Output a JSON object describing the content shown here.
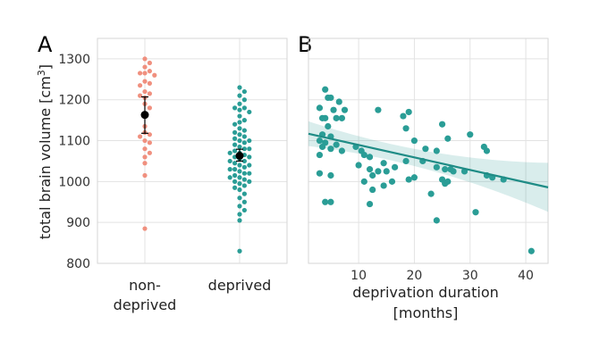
{
  "chart_data": [
    {
      "panel": "A",
      "type": "scatter",
      "ylabel_prefix": "total brain volume [cm",
      "ylabel_sup": "3",
      "ylabel_suffix": "]",
      "ylim": [
        800,
        1350
      ],
      "yticks": [
        800,
        900,
        1000,
        1100,
        1200,
        1300
      ],
      "categories": [
        {
          "label_lines": [
            "non-",
            "deprived"
          ]
        },
        {
          "label_lines": [
            "deprived"
          ]
        }
      ],
      "series": [
        {
          "name": "non-deprived",
          "color": "#F0907F",
          "values": [
            1300,
            1290,
            1280,
            1270,
            1265,
            1265,
            1260,
            1245,
            1240,
            1235,
            1220,
            1215,
            1210,
            1205,
            1190,
            1180,
            1160,
            1135,
            1120,
            1115,
            1110,
            1100,
            1095,
            1080,
            1070,
            1060,
            1045,
            1015,
            885
          ],
          "mean": 1163,
          "ci": [
            1118,
            1207
          ]
        },
        {
          "name": "deprived",
          "color": "#2A9D96",
          "values": [
            1230,
            1220,
            1210,
            1200,
            1190,
            1180,
            1180,
            1175,
            1170,
            1160,
            1150,
            1145,
            1140,
            1130,
            1125,
            1120,
            1115,
            1110,
            1105,
            1100,
            1100,
            1095,
            1090,
            1085,
            1080,
            1080,
            1075,
            1070,
            1070,
            1065,
            1060,
            1060,
            1055,
            1050,
            1050,
            1045,
            1040,
            1040,
            1035,
            1030,
            1030,
            1025,
            1020,
            1020,
            1015,
            1010,
            1010,
            1005,
            1000,
            1000,
            995,
            990,
            985,
            980,
            970,
            960,
            950,
            940,
            930,
            920,
            905,
            830
          ],
          "mean": 1063,
          "ci": [
            1050,
            1079
          ]
        }
      ]
    },
    {
      "panel": "B",
      "type": "scatter",
      "xlabel": [
        "deprivation duration",
        "[months]"
      ],
      "xlim": [
        1,
        44
      ],
      "ylim": [
        800,
        1350
      ],
      "xticks": [
        10,
        20,
        30,
        40
      ],
      "color": "#2A9D96",
      "points": [
        [
          4.0,
          1225
        ],
        [
          4.5,
          1205
        ],
        [
          5.0,
          1205
        ],
        [
          6.5,
          1195
        ],
        [
          3.0,
          1180
        ],
        [
          5.5,
          1175
        ],
        [
          7.5,
          1175
        ],
        [
          4.0,
          1155
        ],
        [
          3.5,
          1155
        ],
        [
          6.0,
          1155
        ],
        [
          7.0,
          1155
        ],
        [
          13.5,
          1175
        ],
        [
          19.0,
          1170
        ],
        [
          18.0,
          1160
        ],
        [
          25.0,
          1140
        ],
        [
          4.5,
          1135
        ],
        [
          18.5,
          1130
        ],
        [
          3.5,
          1115
        ],
        [
          5.0,
          1110
        ],
        [
          3.0,
          1100
        ],
        [
          4.0,
          1095
        ],
        [
          6.0,
          1090
        ],
        [
          3.5,
          1085
        ],
        [
          5.0,
          1080
        ],
        [
          7.0,
          1075
        ],
        [
          9.5,
          1085
        ],
        [
          10.5,
          1075
        ],
        [
          20.0,
          1100
        ],
        [
          26.0,
          1105
        ],
        [
          22.0,
          1080
        ],
        [
          24.0,
          1075
        ],
        [
          30.0,
          1115
        ],
        [
          32.5,
          1085
        ],
        [
          33.0,
          1075
        ],
        [
          11.0,
          1065
        ],
        [
          12.0,
          1060
        ],
        [
          14.5,
          1045
        ],
        [
          18.5,
          1050
        ],
        [
          21.5,
          1050
        ],
        [
          3.0,
          1065
        ],
        [
          10.0,
          1040
        ],
        [
          12.0,
          1030
        ],
        [
          13.5,
          1025
        ],
        [
          12.5,
          1015
        ],
        [
          15.0,
          1025
        ],
        [
          16.5,
          1035
        ],
        [
          24.0,
          1035
        ],
        [
          25.5,
          1030
        ],
        [
          26.5,
          1030
        ],
        [
          27.0,
          1025
        ],
        [
          29.0,
          1025
        ],
        [
          33.0,
          1015
        ],
        [
          34.0,
          1010
        ],
        [
          36.0,
          1005
        ],
        [
          25.0,
          1005
        ],
        [
          25.5,
          995
        ],
        [
          20.0,
          1010
        ],
        [
          19.0,
          1005
        ],
        [
          3.0,
          1020
        ],
        [
          5.0,
          1015
        ],
        [
          11.0,
          1000
        ],
        [
          12.5,
          980
        ],
        [
          14.5,
          990
        ],
        [
          16.0,
          1000
        ],
        [
          26.0,
          1000
        ],
        [
          23.0,
          970
        ],
        [
          4.0,
          950
        ],
        [
          5.0,
          950
        ],
        [
          12.0,
          945
        ],
        [
          31.0,
          925
        ],
        [
          24.0,
          905
        ],
        [
          41.0,
          830
        ]
      ],
      "regression": {
        "intercept": 1120,
        "slope": -3.05,
        "ci_half_width_at_mean": 20,
        "x_range": [
          1,
          44
        ]
      }
    }
  ]
}
